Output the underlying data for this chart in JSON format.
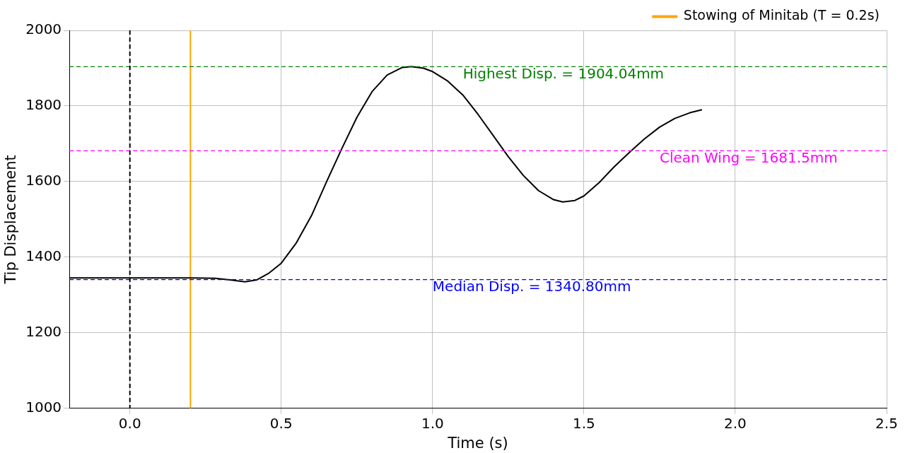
{
  "chart_data": {
    "type": "line",
    "xlabel": "Time (s)",
    "ylabel": "Tip Displacement",
    "xlim": [
      -0.2,
      2.5
    ],
    "xticks": [
      {
        "value": 0,
        "label": "0.0"
      },
      0.5,
      {
        "value": 1,
        "label": "1.0"
      },
      1.5,
      {
        "value": 2,
        "label": "2.0"
      },
      2.5
    ],
    "ylim": [
      1000,
      2000
    ],
    "yticks": [
      1000,
      1200,
      1400,
      1600,
      1800,
      2000
    ],
    "grid": true,
    "legend": "top right",
    "marker": "none",
    "series": [
      {
        "color": "#000000",
        "line_style": "solid",
        "x": [
          -0.2,
          0,
          0.2,
          0.28,
          0.33,
          0.38,
          0.42,
          0.46,
          0.5,
          0.55,
          0.6,
          0.65,
          0.7,
          0.75,
          0.8,
          0.85,
          0.9,
          0.93,
          0.97,
          1.0,
          1.05,
          1.1,
          1.15,
          1.2,
          1.25,
          1.3,
          1.35,
          1.4,
          1.43,
          1.47,
          1.5,
          1.55,
          1.6,
          1.65,
          1.7,
          1.75,
          1.8,
          1.85,
          1.89
        ],
        "values": [
          1345,
          1345,
          1345,
          1344,
          1340,
          1335,
          1340,
          1358,
          1384,
          1438,
          1510,
          1600,
          1687,
          1770,
          1838,
          1882,
          1902,
          1904,
          1900,
          1891,
          1866,
          1829,
          1778,
          1722,
          1666,
          1616,
          1576,
          1552,
          1546,
          1550,
          1562,
          1597,
          1639,
          1677,
          1713,
          1744,
          1767,
          1782,
          1790
        ]
      },
      {
        "name": "Stowing of Minitab (T = 0.2s)",
        "color": "#ffa500",
        "line_style": "solid",
        "x": [
          0.2,
          0.2
        ],
        "values": [
          1000,
          2000
        ]
      }
    ],
    "ref_lines": [
      {
        "axis": "y",
        "value": 1904.04,
        "color": "#008000",
        "line_style": "dashed"
      },
      {
        "axis": "y",
        "value": 1681.5,
        "color": "#ff00ff",
        "line_style": "dashed"
      },
      {
        "axis": "y",
        "value": 1340.8,
        "color": "#0000ff",
        "line_style": "dashed"
      },
      {
        "axis": "x",
        "value": 0,
        "color": "#000000",
        "line_style": "dashed"
      }
    ],
    "annotations": [
      {
        "text": "Highest Disp. = 1904.04mm",
        "x": 1.1,
        "y": 1904.04
      },
      {
        "text": "Clean Wing = 1681.5mm",
        "x": 1.75,
        "y": 1681.5
      },
      {
        "text": "Median Disp. = 1340.80mm",
        "x": 1.0,
        "y": 1340.8
      }
    ]
  }
}
